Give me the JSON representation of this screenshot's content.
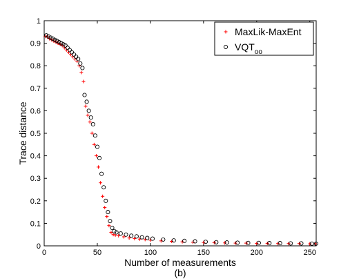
{
  "chart_data": {
    "type": "scatter",
    "title": "",
    "xlabel": "Number of measurements",
    "ylabel": "Trace distance",
    "caption": "(b)",
    "xlim": [
      0,
      256
    ],
    "ylim": [
      0,
      1
    ],
    "xticks": [
      "0",
      "50",
      "100",
      "150",
      "200",
      "250"
    ],
    "yticks": [
      "0",
      "0.1",
      "0.2",
      "0.3",
      "0.4",
      "0.5",
      "0.6",
      "0.7",
      "0.8",
      "0.9",
      "1"
    ],
    "grid": false,
    "legend_position": "top-right",
    "series": [
      {
        "name": "MaxLik-MaxEnt",
        "marker": "plus",
        "color": "#ff0000",
        "x": [
          1,
          3,
          5,
          7,
          9,
          11,
          13,
          15,
          17,
          19,
          21,
          23,
          25,
          27,
          29,
          31,
          33,
          35,
          37,
          39,
          41,
          43,
          45,
          47,
          49,
          51,
          53,
          55,
          57,
          59,
          61,
          63,
          65,
          67,
          70,
          75,
          80,
          85,
          90,
          95,
          100,
          110,
          120,
          130,
          140,
          150,
          160,
          170,
          180,
          190,
          200,
          210,
          220,
          230,
          240,
          250,
          255
        ],
        "y": [
          0.93,
          0.928,
          0.92,
          0.915,
          0.91,
          0.905,
          0.9,
          0.895,
          0.89,
          0.88,
          0.87,
          0.86,
          0.85,
          0.84,
          0.83,
          0.82,
          0.8,
          0.77,
          0.73,
          0.62,
          0.58,
          0.55,
          0.5,
          0.45,
          0.4,
          0.35,
          0.28,
          0.22,
          0.17,
          0.13,
          0.09,
          0.06,
          0.05,
          0.048,
          0.045,
          0.04,
          0.035,
          0.032,
          0.03,
          0.028,
          0.025,
          0.022,
          0.02,
          0.018,
          0.016,
          0.015,
          0.014,
          0.013,
          0.012,
          0.012,
          0.011,
          0.011,
          0.01,
          0.01,
          0.01,
          0.009,
          0.009
        ]
      },
      {
        "name": "VQT",
        "name_subscript": "oo",
        "marker": "circle",
        "color": "#000000",
        "x": [
          2,
          4,
          6,
          8,
          10,
          12,
          14,
          16,
          18,
          20,
          22,
          24,
          26,
          28,
          30,
          32,
          34,
          36,
          38,
          40,
          42,
          44,
          46,
          48,
          50,
          52,
          54,
          56,
          58,
          60,
          62,
          64,
          66,
          68,
          72,
          77,
          82,
          87,
          92,
          97,
          102,
          112,
          122,
          132,
          142,
          152,
          162,
          172,
          182,
          192,
          202,
          212,
          222,
          232,
          242,
          252,
          256
        ],
        "y": [
          0.935,
          0.93,
          0.925,
          0.92,
          0.915,
          0.91,
          0.905,
          0.9,
          0.895,
          0.89,
          0.88,
          0.87,
          0.86,
          0.85,
          0.84,
          0.83,
          0.81,
          0.79,
          0.67,
          0.64,
          0.6,
          0.57,
          0.54,
          0.49,
          0.44,
          0.39,
          0.32,
          0.26,
          0.2,
          0.15,
          0.11,
          0.08,
          0.065,
          0.06,
          0.055,
          0.05,
          0.045,
          0.042,
          0.038,
          0.035,
          0.032,
          0.028,
          0.024,
          0.022,
          0.02,
          0.018,
          0.016,
          0.015,
          0.014,
          0.013,
          0.013,
          0.012,
          0.012,
          0.011,
          0.011,
          0.01,
          0.01
        ]
      }
    ]
  }
}
